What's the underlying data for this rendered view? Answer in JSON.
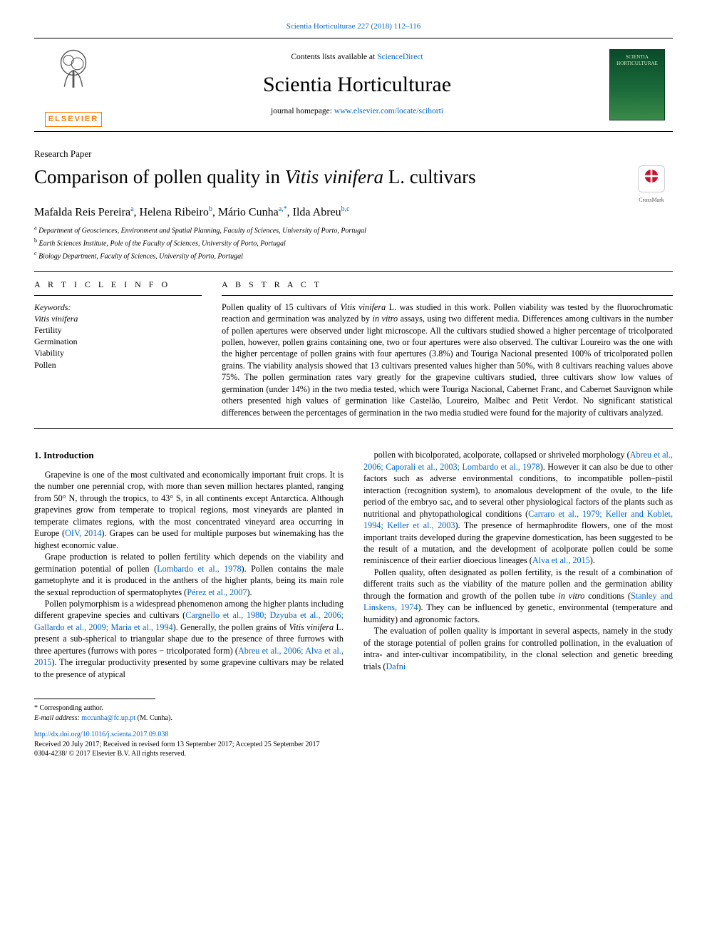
{
  "citation_line": "Scientia Horticulturae 227 (2018) 112–116",
  "masthead": {
    "contents_prefix": "Contents lists available at ",
    "contents_link": "ScienceDirect",
    "journal": "Scientia Horticulturae",
    "homepage_prefix": "journal homepage: ",
    "homepage_url": "www.elsevier.com/locate/scihorti",
    "publisher_word": "ELSEVIER",
    "cover_label": "SCIENTIA HORTICULTURAE"
  },
  "article_type": "Research Paper",
  "title_pre": "Comparison of pollen quality in ",
  "title_ital": "Vitis vinifera",
  "title_post": " L. cultivars",
  "crossmark_label": "CrossMark",
  "authors_html": "Mafalda Reis Pereira<sup>a</sup>, Helena Ribeiro<sup>b</sup>, Mário Cunha<sup>a,*</sup>, Ilda Abreu<sup>b,c</sup>",
  "affiliations": [
    {
      "sup": "a",
      "text": "Department of Geosciences, Environment and Spatial Planning, Faculty of Sciences, University of Porto, Portugal"
    },
    {
      "sup": "b",
      "text": "Earth Sciences Institute, Pole of the Faculty of Sciences, University of Porto, Portugal"
    },
    {
      "sup": "c",
      "text": "Biology Department, Faculty of Sciences, University of Porto, Portugal"
    }
  ],
  "article_info_head": "A R T I C L E  I N F O",
  "abstract_head": "A B S T R A C T",
  "keywords_label": "Keywords:",
  "keywords": [
    "Vitis vinifera",
    "Fertility",
    "Germination",
    "Viability",
    "Pollen"
  ],
  "abstract": "Pollen quality of 15 cultivars of Vitis vinifera L. was studied in this work. Pollen viability was tested by the fluorochromatic reaction and germination was analyzed by in vitro assays, using two different media. Differences among cultivars in the number of pollen apertures were observed under light microscope. All the cultivars studied showed a higher percentage of tricolporated pollen, however, pollen grains containing one, two or four apertures were also observed. The cultivar Loureiro was the one with the higher percentage of pollen grains with four apertures (3.8%) and Touriga Nacional presented 100% of tricolporated pollen grains. The viability analysis showed that 13 cultivars presented values higher than 50%, with 8 cultivars reaching values above 75%. The pollen germination rates vary greatly for the grapevine cultivars studied, three cultivars show low values of germination (under 14%) in the two media tested, which were Touriga Nacional, Cabernet Franc, and Cabernet Sauvignon while others presented high values of germination like Castelão, Loureiro, Malbec and Petit Verdot. No significant statistical differences between the percentages of germination in the two media studied were found for the majority of cultivars analyzed.",
  "intro_head": "1. Introduction",
  "intro_paragraphs": [
    "Grapevine is one of the most cultivated and economically important fruit crops. It is the number one perennial crop, with more than seven million hectares planted, ranging from 50° N, through the tropics, to 43° S, in all continents except Antarctica. Although grapevines grow from temperate to tropical regions, most vineyards are planted in temperate climates regions, with the most concentrated vineyard area occurring in Europe (<a>OIV, 2014</a>). Grapes can be used for multiple purposes but winemaking has the highest economic value.",
    "Grape production is related to pollen fertility which depends on the viability and germination potential of pollen (<a>Lombardo et al., 1978</a>). Pollen contains the male gametophyte and it is produced in the anthers of the higher plants, being its main role the sexual reproduction of spermatophytes (<a>Pérez et al., 2007</a>).",
    "Pollen polymorphism is a widespread phenomenon among the higher plants including different grapevine species and cultivars (<a>Cargnello et al., 1980; Dzyuba et al., 2006; Gallardo et al., 2009; Maria et al., 1994</a>). Generally, the pollen grains of <span class=\"ital\">Vitis vinifera</span> L. present a sub-spherical to triangular shape due to the presence of three furrows with three apertures (furrows with pores − tricolporated form) (<a>Abreu et al., 2006; Alva et al., 2015</a>). The irregular productivity presented by some grapevine cultivars may be related to the presence of atypical",
    "pollen with bicolporated, acolporate, collapsed or shriveled morphology (<a>Abreu et al., 2006; Caporali et al., 2003; Lombardo et al., 1978</a>). However it can also be due to other factors such as adverse environmental conditions, to incompatible pollen–pistil interaction (recognition system), to anomalous development of the ovule, to the life period of the embryo sac, and to several other physiological factors of the plants such as nutritional and phytopathological conditions (<a>Carraro et al., 1979; Keller and Koblet, 1994; Keller et al., 2003</a>). The presence of hermaphrodite flowers, one of the most important traits developed during the grapevine domestication, has been suggested to be the result of a mutation, and the development of acolporate pollen could be some reminiscence of their earlier dioecious lineages (<a>Alva et al., 2015</a>).",
    "Pollen quality, often designated as pollen fertility, is the result of a combination of different traits such as the viability of the mature pollen and the germination ability through the formation and growth of the pollen tube <span class=\"ital\">in vitro</span> conditions (<a>Stanley and Linskens, 1974</a>). They can be influenced by genetic, environmental (temperature and humidity) and agronomic factors.",
    "The evaluation of pollen quality is important in several aspects, namely in the study of the storage potential of pollen grains for controlled pollination, in the evaluation of intra- and inter-cultivar incompatibility, in the clonal selection and genetic breeding trials (<a>Dafni</a>"
  ],
  "corr_label": "* Corresponding author.",
  "email_label": "E-mail address:",
  "email": "mccunha@fc.up.pt",
  "email_who": " (M. Cunha).",
  "doi": "http://dx.doi.org/10.1016/j.scienta.2017.09.038",
  "received": "Received 20 July 2017; Received in revised form 13 September 2017; Accepted 25 September 2017",
  "copyright": "0304-4238/ © 2017 Elsevier B.V. All rights reserved."
}
